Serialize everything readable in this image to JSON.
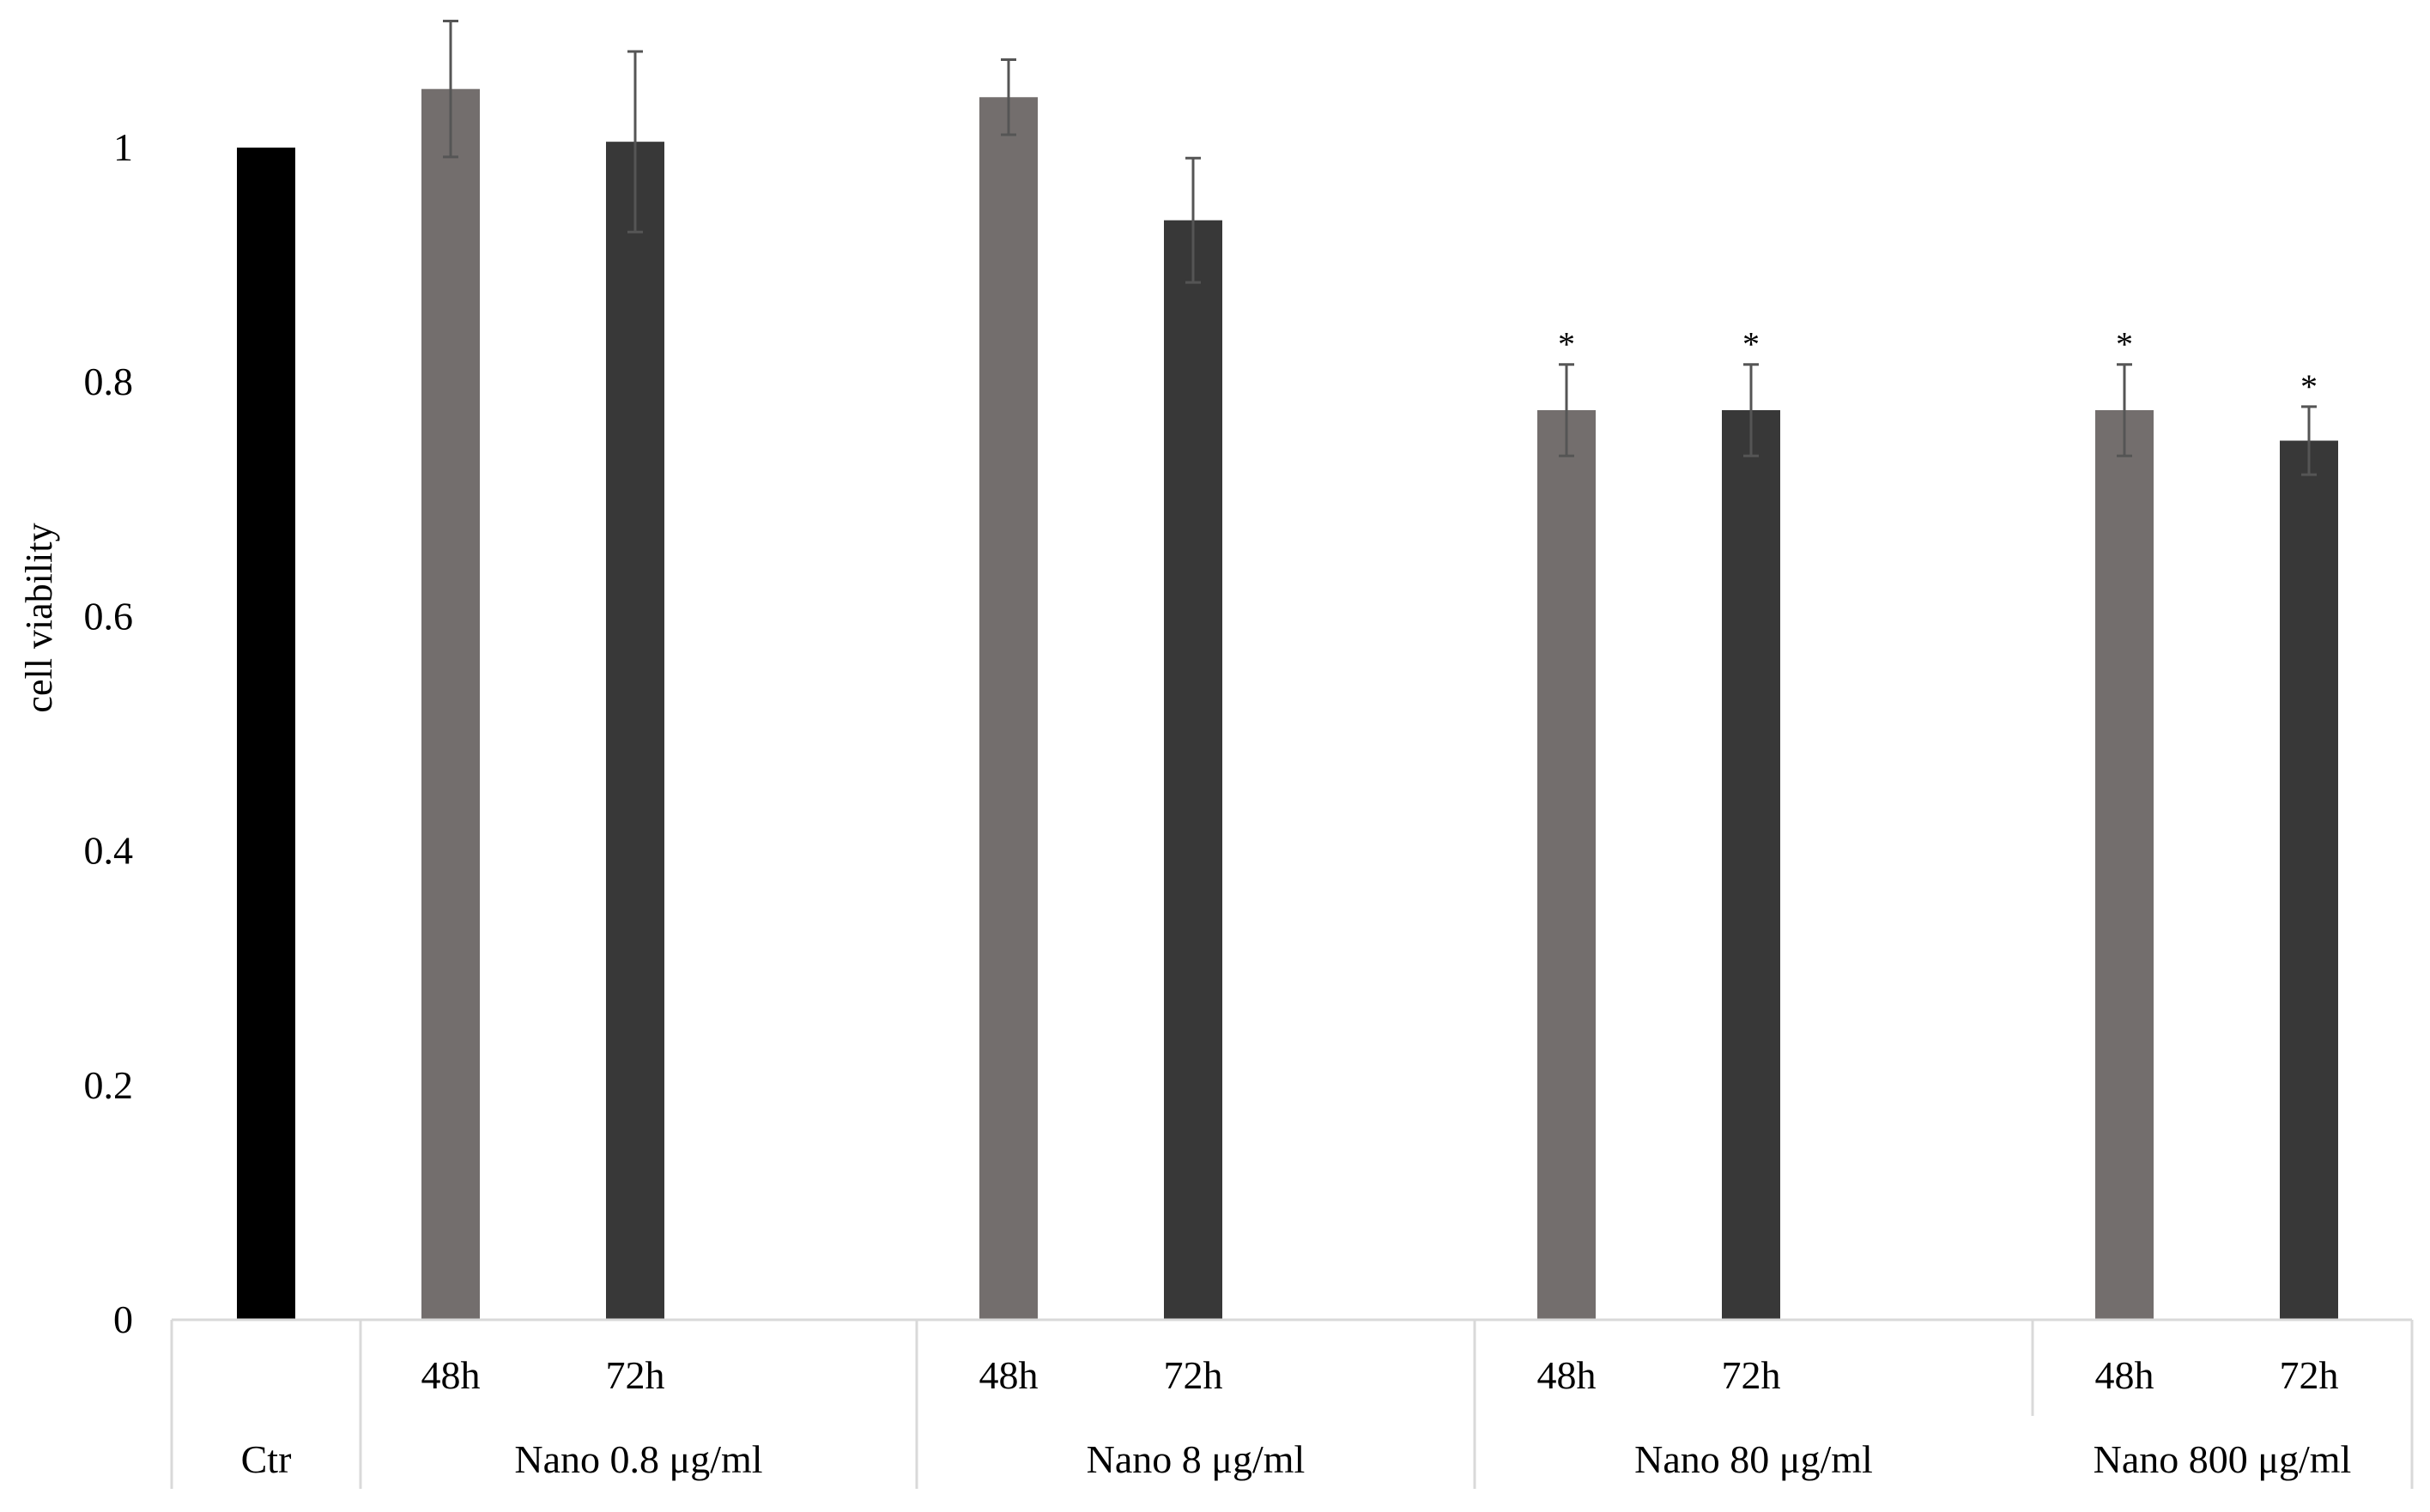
{
  "chart_data": {
    "type": "bar",
    "title": "",
    "xlabel": "",
    "ylabel": "cell viability",
    "ylim": [
      0,
      1.0
    ],
    "yticks": [
      0,
      0.2,
      0.4,
      0.6,
      0.8,
      1
    ],
    "grid": false,
    "legend": "none",
    "colors": {
      "control": "#000000",
      "48h": "#736e6d",
      "72h": "#383838",
      "error_bar": "#555555",
      "divider": "#d9d9d9"
    },
    "groups": [
      {
        "label": "Ctr",
        "bars": [
          {
            "sublabel": "",
            "value": 1.0,
            "error": 0,
            "significant": false,
            "color_key": "control"
          }
        ]
      },
      {
        "label": "Nano 0.8 μg/ml",
        "bars": [
          {
            "sublabel": "48h",
            "value": 1.05,
            "error": 0.058,
            "significant": false,
            "color_key": "48h"
          },
          {
            "sublabel": "72h",
            "value": 1.005,
            "error": 0.077,
            "significant": false,
            "color_key": "72h"
          }
        ]
      },
      {
        "label": "Nano 8 μg/ml",
        "bars": [
          {
            "sublabel": "48h",
            "value": 1.043,
            "error": 0.032,
            "significant": false,
            "color_key": "48h"
          },
          {
            "sublabel": "72h",
            "value": 0.938,
            "error": 0.053,
            "significant": false,
            "color_key": "72h"
          }
        ]
      },
      {
        "label": "Nano 80 μg/ml",
        "bars": [
          {
            "sublabel": "48h",
            "value": 0.776,
            "error": 0.039,
            "significant": true,
            "color_key": "48h"
          },
          {
            "sublabel": "72h",
            "value": 0.776,
            "error": 0.039,
            "significant": true,
            "color_key": "72h"
          }
        ]
      },
      {
        "label": "Nano 800 μg/ml",
        "bars": [
          {
            "sublabel": "48h",
            "value": 0.776,
            "error": 0.039,
            "significant": true,
            "color_key": "48h"
          },
          {
            "sublabel": "72h",
            "value": 0.75,
            "error": 0.029,
            "significant": true,
            "color_key": "72h"
          }
        ]
      }
    ],
    "significance_symbol": "*"
  }
}
